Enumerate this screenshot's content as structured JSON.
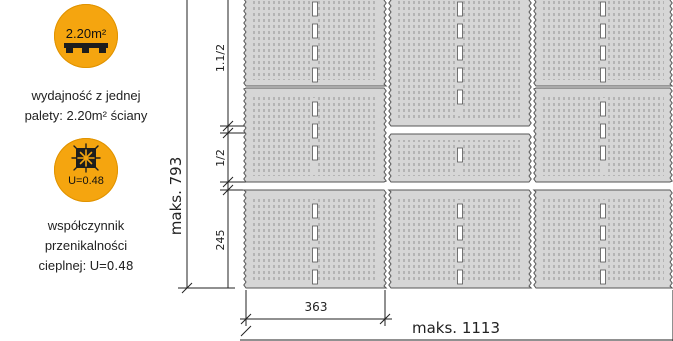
{
  "pallet_badge": {
    "value": "2.20m²",
    "icon": "pallet-icon",
    "color": "#f5a50f"
  },
  "pallet_caption": {
    "line1": "wydajność z jednej",
    "line2": "palety: 2.20m² ściany"
  },
  "thermal_badge": {
    "value": "U=0.48",
    "icon": "snowflake-icon",
    "color": "#f5a50f"
  },
  "thermal_caption": {
    "line1": "współczynnik",
    "line2": "przenikalności",
    "line3_prefix": "cieplnej: U=",
    "line3_value": "0.48"
  },
  "dimensions": {
    "height_total": "maks. 793",
    "row_top": "1.1/2",
    "row_middle": "1/2",
    "row_bottom": "245",
    "block_width": "363",
    "width_total": "maks. 1113"
  }
}
